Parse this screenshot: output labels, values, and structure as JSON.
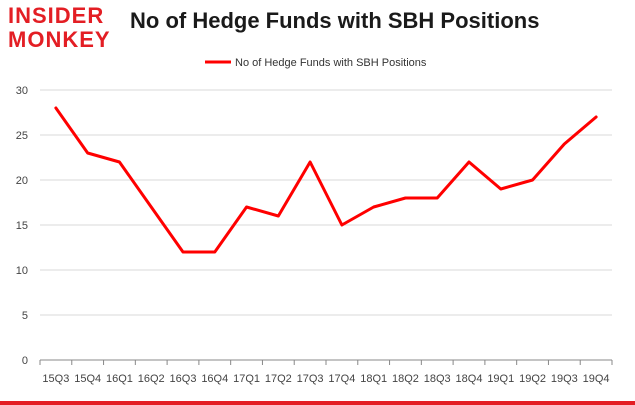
{
  "logo": {
    "line1": "INSIDER",
    "line2": "MONKEY"
  },
  "chart_data": {
    "type": "line",
    "title": "No of Hedge Funds with SBH Positions",
    "categories": [
      "15Q3",
      "15Q4",
      "16Q1",
      "16Q2",
      "16Q3",
      "16Q4",
      "17Q1",
      "17Q2",
      "17Q3",
      "17Q4",
      "18Q1",
      "18Q2",
      "18Q3",
      "18Q4",
      "19Q1",
      "19Q2",
      "19Q3",
      "19Q4"
    ],
    "series": [
      {
        "name": "No of Hedge Funds with SBH Positions",
        "values": [
          28,
          23,
          22,
          17,
          12,
          12,
          17,
          16,
          22,
          15,
          17,
          18,
          18,
          22,
          19,
          20,
          24,
          27
        ]
      }
    ],
    "ylim": [
      0,
      30
    ],
    "yticks": [
      0,
      5,
      10,
      15,
      20,
      25,
      30
    ],
    "legend": "top-center",
    "grid": true,
    "colors": {
      "line": "#ff0000",
      "grid": "#d9d9d9",
      "axis": "#888888",
      "accent": "#e31e24"
    }
  }
}
